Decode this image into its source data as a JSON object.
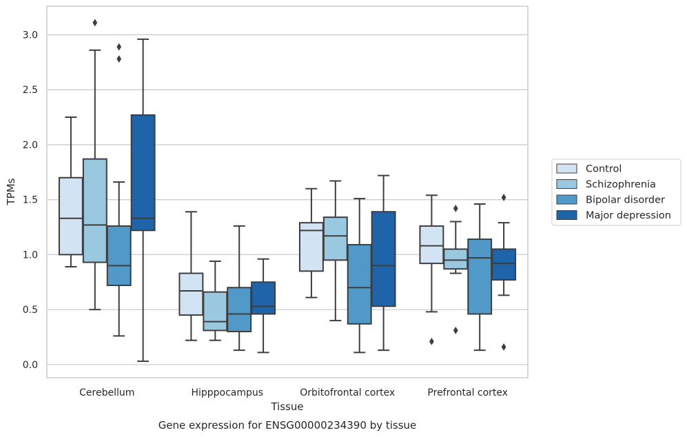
{
  "chart_data": {
    "type": "box",
    "title": "",
    "caption": "Gene expression for ENSG00000234390 by tissue",
    "xlabel": "Tissue",
    "ylabel": "TPMs",
    "ylim": [
      -0.12,
      3.26
    ],
    "yticks": [
      0.0,
      0.5,
      1.0,
      1.5,
      2.0,
      2.5,
      3.0
    ],
    "ytick_labels": [
      "0.0",
      "0.5",
      "1.0",
      "1.5",
      "2.0",
      "2.5",
      "3.0"
    ],
    "grid": "horizontal",
    "legend_position": "right",
    "categories": [
      "Cerebellum",
      "Hipppocampus",
      "Orbitofrontal cortex",
      "Prefrontal cortex"
    ],
    "series": [
      {
        "name": "Control",
        "color": "#d2e3f3",
        "boxes": [
          {
            "whisker_low": 0.89,
            "q1": 1.0,
            "median": 1.33,
            "q3": 1.7,
            "whisker_high": 2.25,
            "outliers": []
          },
          {
            "whisker_low": 0.22,
            "q1": 0.45,
            "median": 0.67,
            "q3": 0.83,
            "whisker_high": 1.39,
            "outliers": []
          },
          {
            "whisker_low": 0.61,
            "q1": 0.85,
            "median": 1.22,
            "q3": 1.29,
            "whisker_high": 1.6,
            "outliers": []
          },
          {
            "whisker_low": 0.48,
            "q1": 0.92,
            "median": 1.08,
            "q3": 1.26,
            "whisker_high": 1.54,
            "outliers": [
              0.21
            ]
          }
        ]
      },
      {
        "name": "Schizophrenia",
        "color": "#9ac8e0",
        "boxes": [
          {
            "whisker_low": 0.5,
            "q1": 0.93,
            "median": 1.27,
            "q3": 1.87,
            "whisker_high": 2.86,
            "outliers": [
              3.11
            ]
          },
          {
            "whisker_low": 0.22,
            "q1": 0.31,
            "median": 0.39,
            "q3": 0.66,
            "whisker_high": 0.94,
            "outliers": []
          },
          {
            "whisker_low": 0.4,
            "q1": 0.95,
            "median": 1.17,
            "q3": 1.34,
            "whisker_high": 1.67,
            "outliers": []
          },
          {
            "whisker_low": 0.83,
            "q1": 0.87,
            "median": 0.95,
            "q3": 1.05,
            "whisker_high": 1.3,
            "outliers": [
              0.31,
              1.42
            ]
          }
        ]
      },
      {
        "name": "Bipolar disorder",
        "color": "#5199c8",
        "boxes": [
          {
            "whisker_low": 0.26,
            "q1": 0.72,
            "median": 0.9,
            "q3": 1.26,
            "whisker_high": 1.66,
            "outliers": [
              2.78,
              2.89
            ]
          },
          {
            "whisker_low": 0.13,
            "q1": 0.3,
            "median": 0.46,
            "q3": 0.7,
            "whisker_high": 1.26,
            "outliers": []
          },
          {
            "whisker_low": 0.11,
            "q1": 0.37,
            "median": 0.7,
            "q3": 1.09,
            "whisker_high": 1.51,
            "outliers": []
          },
          {
            "whisker_low": 0.13,
            "q1": 0.46,
            "median": 0.97,
            "q3": 1.14,
            "whisker_high": 1.46,
            "outliers": []
          }
        ]
      },
      {
        "name": "Major depression",
        "color": "#1f63a8",
        "boxes": [
          {
            "whisker_low": 0.03,
            "q1": 1.22,
            "median": 1.33,
            "q3": 2.27,
            "whisker_high": 2.96,
            "outliers": []
          },
          {
            "whisker_low": 0.11,
            "q1": 0.46,
            "median": 0.53,
            "q3": 0.75,
            "whisker_high": 0.96,
            "outliers": []
          },
          {
            "whisker_low": 0.13,
            "q1": 0.53,
            "median": 0.9,
            "q3": 1.39,
            "whisker_high": 1.72,
            "outliers": []
          },
          {
            "whisker_low": 0.63,
            "q1": 0.77,
            "median": 0.92,
            "q3": 1.05,
            "whisker_high": 1.29,
            "outliers": [
              0.16,
              1.52
            ]
          }
        ]
      }
    ]
  }
}
